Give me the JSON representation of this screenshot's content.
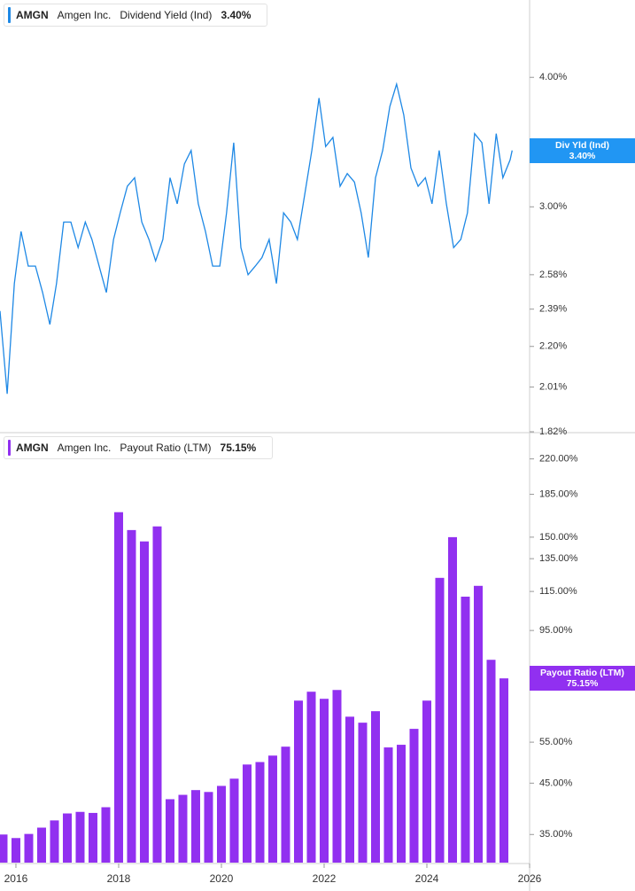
{
  "chart_data": [
    {
      "type": "line",
      "ticker": "AMGN",
      "company": "Amgen Inc.",
      "log_scale": true,
      "badge_label": "Div Yld (Ind)",
      "current_value": {
        "value": 3.4,
        "label": "3.40%"
      },
      "xlim": [
        2015.69,
        2026
      ],
      "x": [
        2015.69,
        2015.83,
        2015.97,
        2016.1,
        2016.24,
        2016.38,
        2016.52,
        2016.66,
        2016.79,
        2016.93,
        2017.07,
        2017.21,
        2017.35,
        2017.48,
        2017.62,
        2017.76,
        2017.9,
        2018.03,
        2018.17,
        2018.31,
        2018.45,
        2018.59,
        2018.72,
        2018.86,
        2019.0,
        2019.14,
        2019.28,
        2019.41,
        2019.55,
        2019.69,
        2019.83,
        2019.97,
        2020.1,
        2020.24,
        2020.38,
        2020.52,
        2020.66,
        2020.79,
        2020.93,
        2021.07,
        2021.21,
        2021.35,
        2021.48,
        2021.62,
        2021.76,
        2021.9,
        2022.03,
        2022.17,
        2022.31,
        2022.45,
        2022.59,
        2022.72,
        2022.86,
        2023.0,
        2023.14,
        2023.28,
        2023.41,
        2023.55,
        2023.69,
        2023.83,
        2023.97,
        2024.1,
        2024.24,
        2024.38,
        2024.52,
        2024.66,
        2024.79,
        2024.93,
        2025.07,
        2025.21,
        2025.35,
        2025.48,
        2025.62,
        2025.66
      ],
      "series": [
        {
          "name": "Dividend Yield (Ind)",
          "color": "#1e88e5",
          "values": [
            2.38,
            1.98,
            2.53,
            2.84,
            2.63,
            2.63,
            2.48,
            2.31,
            2.53,
            2.9,
            2.9,
            2.74,
            2.9,
            2.79,
            2.63,
            2.48,
            2.79,
            2.96,
            3.14,
            3.2,
            2.9,
            2.79,
            2.66,
            2.79,
            3.2,
            3.02,
            3.3,
            3.4,
            3.02,
            2.84,
            2.63,
            2.63,
            2.96,
            3.46,
            2.74,
            2.58,
            2.63,
            2.68,
            2.79,
            2.53,
            2.96,
            2.9,
            2.79,
            3.08,
            3.4,
            3.82,
            3.43,
            3.5,
            3.14,
            3.23,
            3.17,
            2.96,
            2.68,
            3.2,
            3.4,
            3.75,
            3.94,
            3.68,
            3.27,
            3.14,
            3.2,
            3.02,
            3.4,
            3.02,
            2.74,
            2.79,
            2.96,
            3.53,
            3.46,
            3.02,
            3.53,
            3.2,
            3.33,
            3.4
          ]
        }
      ],
      "ylim": [
        1.82,
        4.75
      ],
      "yticks": [
        {
          "value": 4,
          "label": "4.00%"
        },
        {
          "value": 3,
          "label": "3.00%"
        },
        {
          "value": 2.58,
          "label": "2.58%"
        },
        {
          "value": 2.39,
          "label": "2.39%"
        },
        {
          "value": 2.2,
          "label": "2.20%"
        },
        {
          "value": 2.01,
          "label": "2.01%"
        },
        {
          "value": 1.82,
          "label": "1.82%"
        }
      ]
    },
    {
      "type": "bar",
      "ticker": "AMGN",
      "company": "Amgen Inc.",
      "log_scale": true,
      "badge_label": "Payout Ratio (LTM)",
      "current_value": {
        "value": 75.15,
        "label": "75.15%"
      },
      "xlim": [
        2015.69,
        2026
      ],
      "xticks": [
        2016,
        2018,
        2020,
        2022,
        2024,
        2026
      ],
      "x": [
        2015.75,
        2016,
        2016.25,
        2016.5,
        2016.75,
        2017,
        2017.25,
        2017.5,
        2017.75,
        2018,
        2018.25,
        2018.5,
        2018.75,
        2019,
        2019.25,
        2019.5,
        2019.75,
        2020,
        2020.25,
        2020.5,
        2020.75,
        2021,
        2021.25,
        2021.5,
        2021.75,
        2022,
        2022.25,
        2022.5,
        2022.75,
        2023,
        2023.25,
        2023.5,
        2023.75,
        2024,
        2024.25,
        2024.5,
        2024.75,
        2025,
        2025.25,
        2025.5
      ],
      "series": [
        {
          "name": "Payout Ratio (LTM)",
          "color": "#9130f0",
          "values": [
            35.0,
            34.4,
            35.1,
            36.2,
            37.5,
            38.8,
            39.1,
            38.9,
            40.0,
            169.5,
            155.3,
            146.9,
            158.1,
            41.6,
            42.5,
            43.5,
            43.1,
            44.4,
            46.0,
            49.3,
            49.9,
            51.5,
            53.8,
            67.4,
            70.4,
            68.0,
            71.0,
            62.3,
            60.5,
            64.0,
            53.6,
            54.3,
            58.7,
            67.4,
            122.9,
            150.0,
            112.1,
            118.2,
            82.3,
            75.15
          ]
        }
      ],
      "ylim": [
        30.5,
        248
      ],
      "yticks": [
        {
          "value": 220,
          "label": "220.00%"
        },
        {
          "value": 185,
          "label": "185.00%"
        },
        {
          "value": 150,
          "label": "150.00%"
        },
        {
          "value": 135,
          "label": "135.00%"
        },
        {
          "value": 115,
          "label": "115.00%"
        },
        {
          "value": 95,
          "label": "95.00%"
        },
        {
          "value": 55,
          "label": "55.00%"
        },
        {
          "value": 45,
          "label": "45.00%"
        },
        {
          "value": 35,
          "label": "35.00%"
        }
      ]
    }
  ]
}
